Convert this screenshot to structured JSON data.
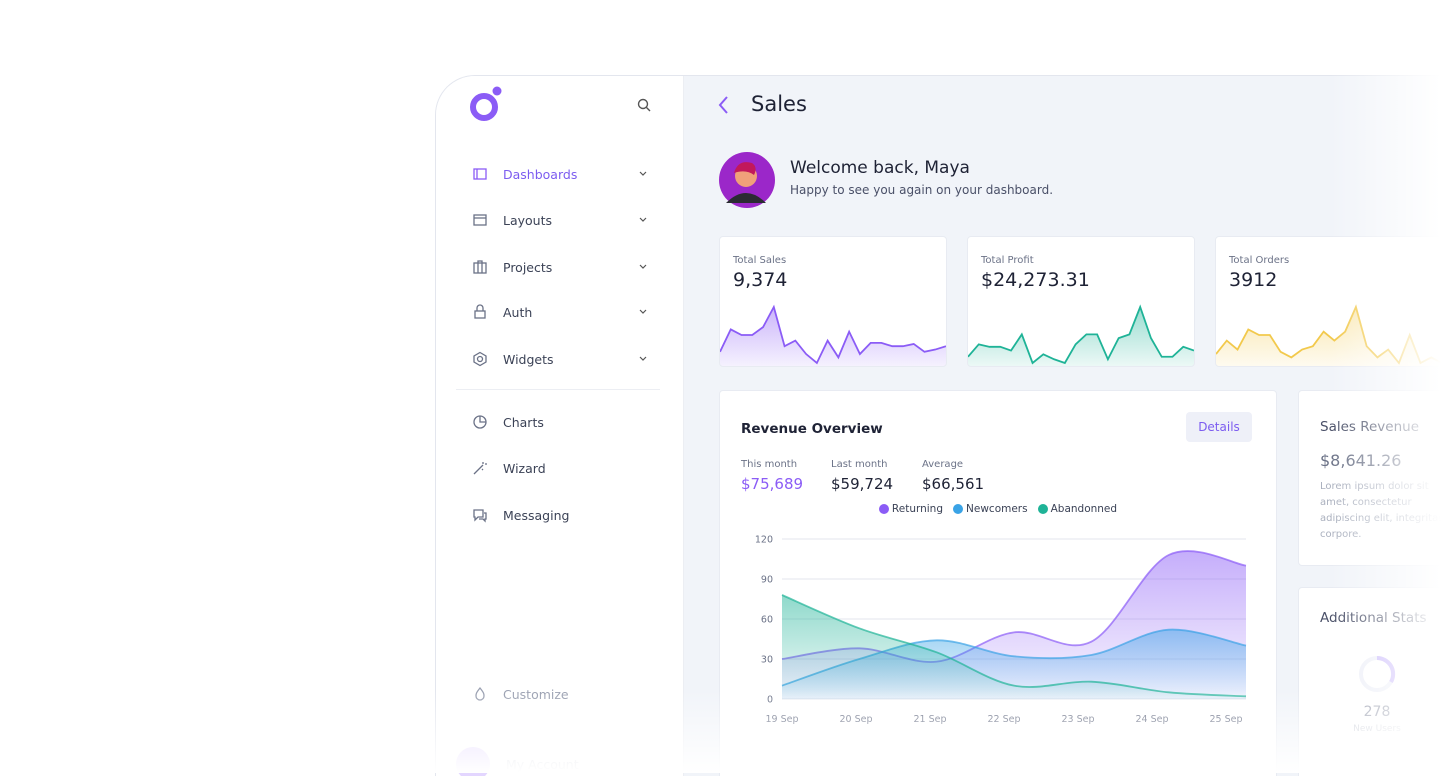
{
  "sidebar": {
    "nav": [
      "Dashboards",
      "Layouts",
      "Projects",
      "Auth",
      "Widgets"
    ],
    "links": [
      "Charts",
      "Wizard",
      "Messaging"
    ],
    "customize": "Customize",
    "account": "My Account"
  },
  "header": {
    "title": "Sales"
  },
  "welcome": {
    "title": "Welcome back, Maya",
    "subtitle": "Happy to see you again on your dashboard."
  },
  "stats": [
    {
      "label": "Total Sales",
      "value": "9,374",
      "color": "#8b5cf6",
      "sparkline": [
        20,
        40,
        35,
        35,
        42,
        60,
        25,
        30,
        18,
        10,
        30,
        15,
        38,
        18,
        28,
        28,
        25,
        25,
        27,
        20,
        22,
        25
      ]
    },
    {
      "label": "Total Profit",
      "value": "$24,273.31",
      "color": "#1fb397",
      "sparkline": [
        20,
        30,
        28,
        28,
        25,
        38,
        15,
        22,
        18,
        15,
        30,
        38,
        38,
        18,
        35,
        38,
        60,
        35,
        20,
        20,
        28,
        25
      ]
    },
    {
      "label": "Total Orders",
      "value": "3912",
      "color": "#f2c94c",
      "sparkline": [
        18,
        30,
        22,
        40,
        35,
        35,
        20,
        15,
        22,
        25,
        38,
        30,
        38,
        60,
        25,
        15,
        22,
        10,
        35,
        10,
        15,
        10
      ]
    }
  ],
  "revenue": {
    "title": "Revenue Overview",
    "button": "Details",
    "summary": [
      {
        "label": "This month",
        "value": "$75,689"
      },
      {
        "label": "Last month",
        "value": "$59,724"
      },
      {
        "label": "Average",
        "value": "$66,561"
      }
    ]
  },
  "chart_data": {
    "type": "area",
    "categories": [
      "19 Sep",
      "20 Sep",
      "21 Sep",
      "22 Sep",
      "23 Sep",
      "24 Sep",
      "25 Sep"
    ],
    "series": [
      {
        "name": "Returning",
        "color": "#8b5cf6",
        "values": [
          30,
          38,
          28,
          50,
          43,
          108,
          100
        ]
      },
      {
        "name": "Newcomers",
        "color": "#3aa3e6",
        "values": [
          10,
          30,
          44,
          32,
          33,
          52,
          40
        ]
      },
      {
        "name": "Abandonned",
        "color": "#1fb397",
        "values": [
          78,
          53,
          35,
          10,
          13,
          5,
          2
        ]
      }
    ],
    "ylim": [
      0,
      120
    ],
    "yticks": [
      0,
      30,
      60,
      90,
      120
    ],
    "grid": true
  },
  "side_cards": {
    "sales": {
      "title": "Sales Revenue",
      "value": "$8,641.26",
      "text": "Lorem ipsum dolor sit amet, consectetur adipiscing elit, integritas corpore."
    },
    "additional": {
      "title": "Additional Stats",
      "value": "278",
      "caption": "New Users"
    }
  }
}
